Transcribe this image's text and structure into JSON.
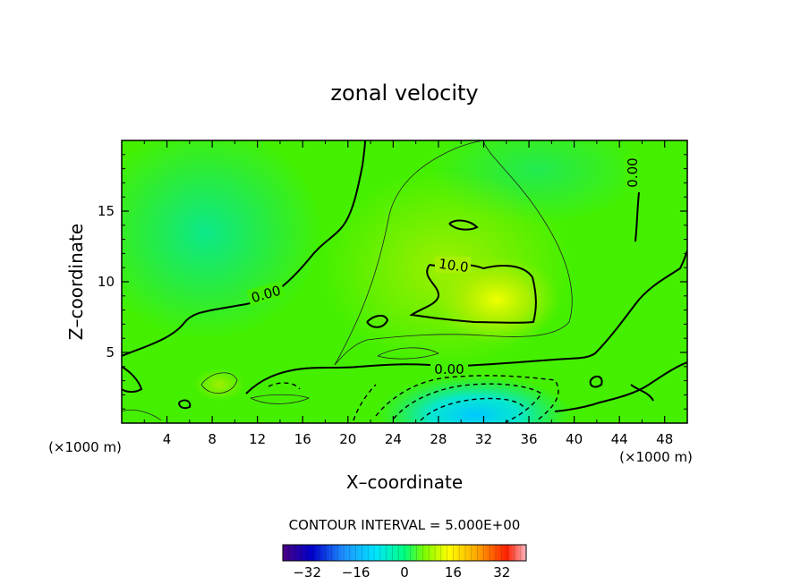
{
  "chart_data": {
    "type": "heatmap",
    "title": "zonal velocity",
    "xlabel": "X–coordinate",
    "ylabel": "Z–coordinate",
    "x_unit_left": "(×1000 m)",
    "x_unit_right": "(×1000 m)",
    "xlim": [
      0,
      50
    ],
    "ylim": [
      0,
      20
    ],
    "x_ticks": [
      4,
      8,
      12,
      16,
      20,
      24,
      28,
      32,
      36,
      40,
      44,
      48
    ],
    "y_ticks": [
      5,
      10,
      15
    ],
    "contour_interval_text": "CONTOUR INTERVAL = 5.000E+00",
    "contour_labels": [
      "0.00",
      "0.00",
      "0.00",
      "10.0"
    ],
    "colorbar": {
      "range": [
        -40,
        40
      ],
      "ticks": [
        -32,
        -16,
        0,
        16,
        32
      ],
      "colors": [
        "#4b0082",
        "#0000cd",
        "#1e90ff",
        "#00e5ff",
        "#00ff7f",
        "#7cfc00",
        "#ffff00",
        "#ffa500",
        "#ff2000",
        "#ffb6c1"
      ]
    },
    "field_values": "zonal velocity: near 0 over most of domain (green), maximum ~12 near x=33, z=9; minimum ~ -10 near x=30, z=1"
  }
}
